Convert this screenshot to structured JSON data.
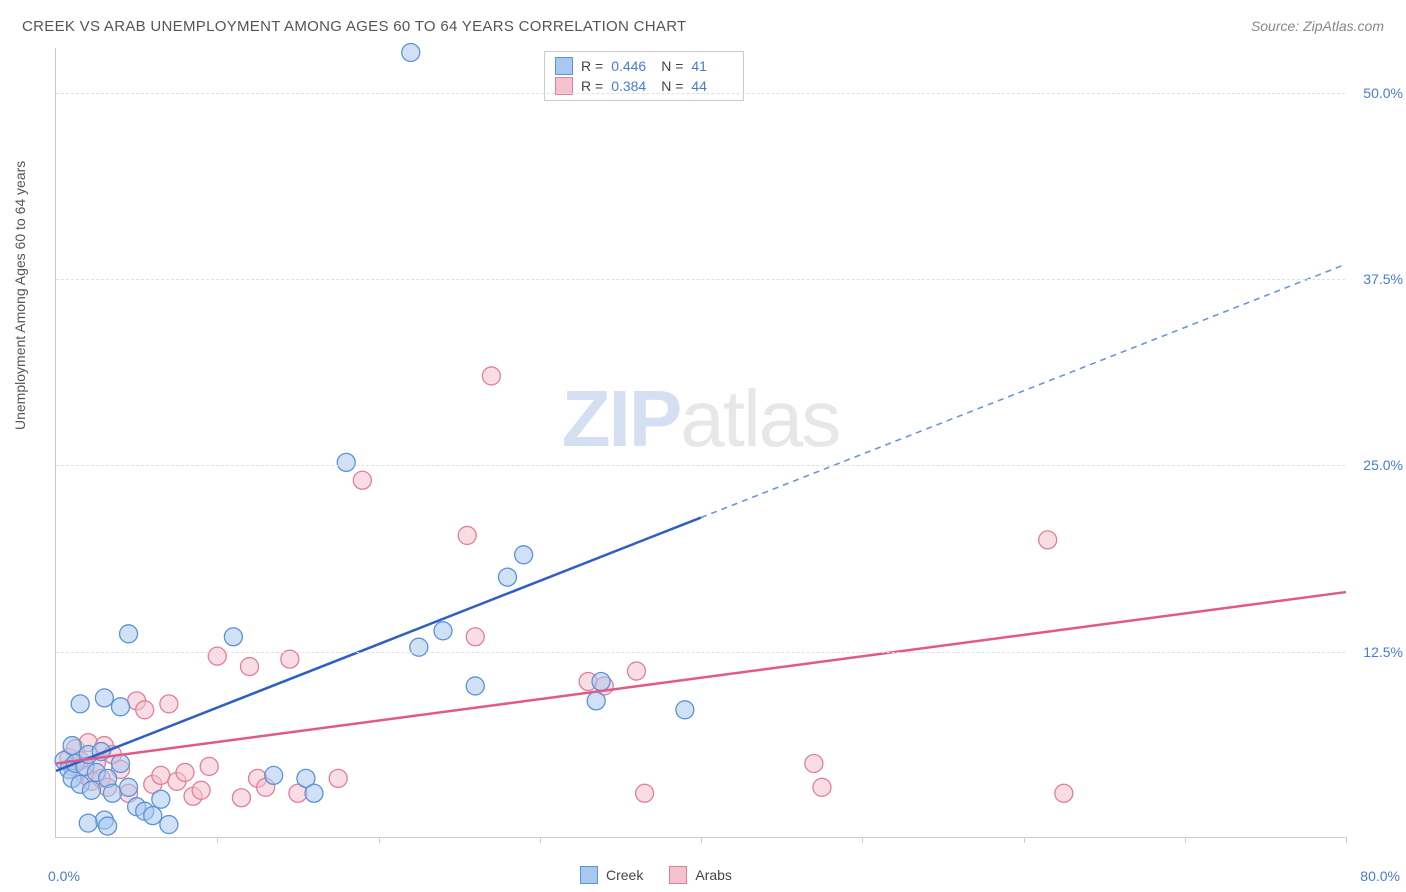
{
  "title": "CREEK VS ARAB UNEMPLOYMENT AMONG AGES 60 TO 64 YEARS CORRELATION CHART",
  "source": "Source: ZipAtlas.com",
  "y_axis_label": "Unemployment Among Ages 60 to 64 years",
  "watermark_zip": "ZIP",
  "watermark_atlas": "atlas",
  "chart": {
    "type": "scatter-correlation",
    "background_color": "#ffffff",
    "grid_color": "#e0e0e0",
    "axis_color": "#cccccc",
    "tick_label_color": "#4a7bd0",
    "x_min": 0,
    "x_max": 80,
    "x_tick_step": 10,
    "y_min": 0,
    "y_max": 53,
    "y_ticks": [
      12.5,
      25.0,
      37.5,
      50.0
    ],
    "x_origin_label": "0.0%",
    "x_max_label": "80.0%",
    "y_tick_labels": [
      "12.5%",
      "25.0%",
      "37.5%",
      "50.0%"
    ],
    "marker_radius": 9,
    "marker_opacity": 0.55,
    "series": {
      "creek": {
        "label": "Creek",
        "fill": "#a9c8ef",
        "stroke": "#5a93d8",
        "trend_color": "#2d5fc4",
        "trend_dash_color": "#6b96db",
        "trend_start": [
          0,
          4.5
        ],
        "trend_solid_end": [
          40,
          21.5
        ],
        "trend_dash_end": [
          80,
          38.5
        ],
        "R": "0.446",
        "N": "41",
        "points": [
          [
            0.5,
            5.2
          ],
          [
            0.8,
            4.6
          ],
          [
            1.0,
            6.2
          ],
          [
            1.0,
            4.0
          ],
          [
            1.2,
            5.0
          ],
          [
            1.5,
            3.6
          ],
          [
            1.8,
            4.8
          ],
          [
            2.0,
            5.6
          ],
          [
            2.2,
            3.2
          ],
          [
            2.5,
            4.4
          ],
          [
            2.8,
            5.8
          ],
          [
            3.0,
            9.4
          ],
          [
            1.5,
            9.0
          ],
          [
            3.2,
            4.0
          ],
          [
            3.5,
            3.0
          ],
          [
            4.0,
            5.0
          ],
          [
            4.5,
            3.4
          ],
          [
            5.0,
            2.1
          ],
          [
            5.5,
            1.8
          ],
          [
            6.0,
            1.5
          ],
          [
            6.5,
            2.6
          ],
          [
            7.0,
            0.9
          ],
          [
            4.0,
            8.8
          ],
          [
            4.5,
            13.7
          ],
          [
            11.0,
            13.5
          ],
          [
            13.5,
            4.2
          ],
          [
            15.5,
            4.0
          ],
          [
            16.0,
            3.0
          ],
          [
            18.0,
            25.2
          ],
          [
            22.0,
            52.7
          ],
          [
            22.5,
            12.8
          ],
          [
            24.0,
            13.9
          ],
          [
            26.0,
            10.2
          ],
          [
            28.0,
            17.5
          ],
          [
            29.0,
            19.0
          ],
          [
            33.5,
            9.2
          ],
          [
            33.8,
            10.5
          ],
          [
            39.0,
            8.6
          ],
          [
            3.0,
            1.2
          ],
          [
            3.2,
            0.8
          ],
          [
            2.0,
            1.0
          ]
        ]
      },
      "arabs": {
        "label": "Arabs",
        "fill": "#f4c1cd",
        "stroke": "#e07f9a",
        "trend_color": "#e05a85",
        "trend_start": [
          0,
          5.0
        ],
        "trend_end": [
          80,
          16.5
        ],
        "R": "0.384",
        "N": "44",
        "points": [
          [
            0.8,
            5.4
          ],
          [
            1.0,
            4.8
          ],
          [
            1.2,
            6.0
          ],
          [
            1.5,
            5.2
          ],
          [
            1.8,
            4.2
          ],
          [
            2.0,
            6.4
          ],
          [
            2.2,
            3.8
          ],
          [
            2.5,
            5.0
          ],
          [
            2.8,
            4.0
          ],
          [
            3.0,
            6.2
          ],
          [
            3.2,
            3.4
          ],
          [
            3.5,
            5.6
          ],
          [
            4.0,
            4.6
          ],
          [
            4.5,
            3.0
          ],
          [
            5.0,
            9.2
          ],
          [
            5.5,
            8.6
          ],
          [
            6.0,
            3.6
          ],
          [
            6.5,
            4.2
          ],
          [
            7.0,
            9.0
          ],
          [
            7.5,
            3.8
          ],
          [
            8.0,
            4.4
          ],
          [
            8.5,
            2.8
          ],
          [
            9.0,
            3.2
          ],
          [
            9.5,
            4.8
          ],
          [
            10.0,
            12.2
          ],
          [
            11.5,
            2.7
          ],
          [
            12.0,
            11.5
          ],
          [
            12.5,
            4.0
          ],
          [
            13.0,
            3.4
          ],
          [
            14.5,
            12.0
          ],
          [
            15.0,
            3.0
          ],
          [
            17.5,
            4.0
          ],
          [
            19.0,
            24.0
          ],
          [
            25.5,
            20.3
          ],
          [
            26.0,
            13.5
          ],
          [
            27.0,
            31.0
          ],
          [
            33.0,
            10.5
          ],
          [
            34.0,
            10.2
          ],
          [
            36.0,
            11.2
          ],
          [
            36.5,
            3.0
          ],
          [
            47.0,
            5.0
          ],
          [
            47.5,
            3.4
          ],
          [
            61.5,
            20.0
          ],
          [
            62.5,
            3.0
          ]
        ]
      }
    }
  },
  "stats_box": {
    "rows": [
      {
        "swatch": "creek",
        "r_label": "R =",
        "r_val": "0.446",
        "n_label": "N =",
        "n_val": "41"
      },
      {
        "swatch": "arabs",
        "r_label": "R =",
        "r_val": "0.384",
        "n_label": "N =",
        "n_val": "44"
      }
    ]
  }
}
